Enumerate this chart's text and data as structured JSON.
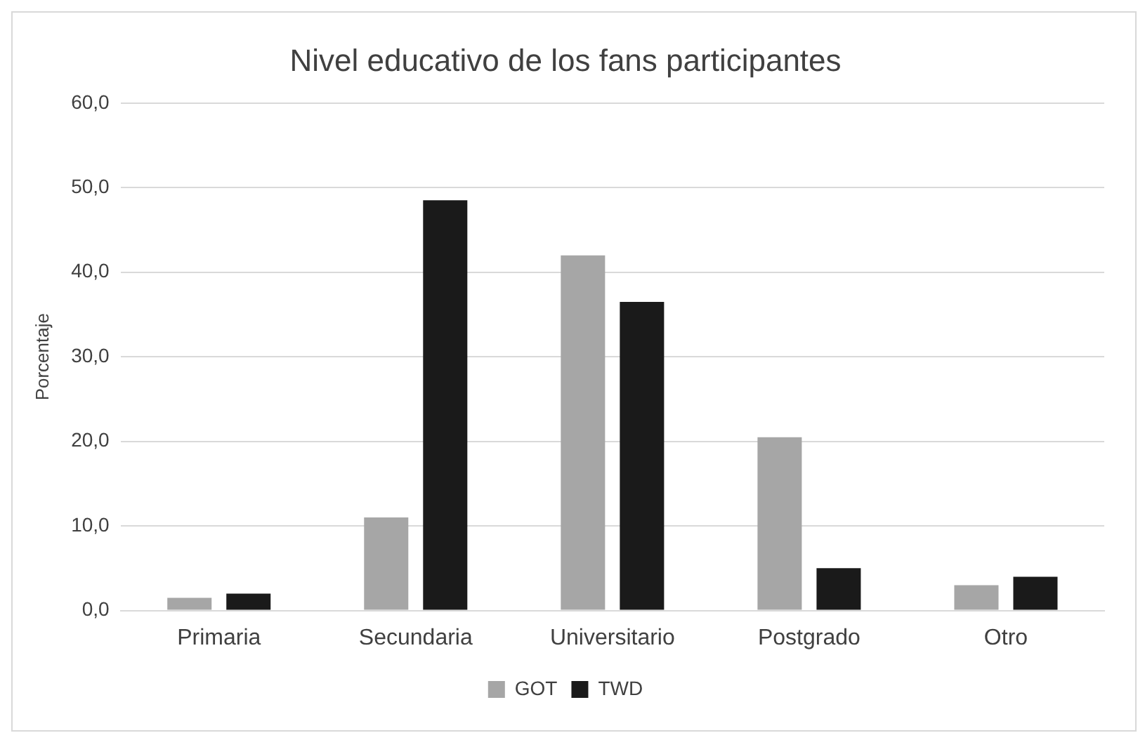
{
  "chart_data": {
    "type": "bar",
    "title": "Nivel educativo de los fans participantes",
    "ylabel": "Porcentaje",
    "categories": [
      "Primaria",
      "Secundaria",
      "Universitario",
      "Postgrado",
      "Otro"
    ],
    "series": [
      {
        "name": "GOT",
        "color": "#a6a6a6",
        "values": [
          1.5,
          11,
          42,
          20.5,
          3
        ]
      },
      {
        "name": "TWD",
        "color": "#1a1a1a",
        "values": [
          2,
          48.5,
          36.5,
          5,
          4
        ]
      }
    ],
    "ylim": [
      0,
      60
    ],
    "yticks": [
      {
        "value": 0,
        "label": "0,0"
      },
      {
        "value": 10,
        "label": "10,0"
      },
      {
        "value": 20,
        "label": "20,0"
      },
      {
        "value": 30,
        "label": "30,0"
      },
      {
        "value": 40,
        "label": "40,0"
      },
      {
        "value": 50,
        "label": "50,0"
      },
      {
        "value": 60,
        "label": "60,0"
      }
    ],
    "grid": "y",
    "legend": "bottom"
  }
}
